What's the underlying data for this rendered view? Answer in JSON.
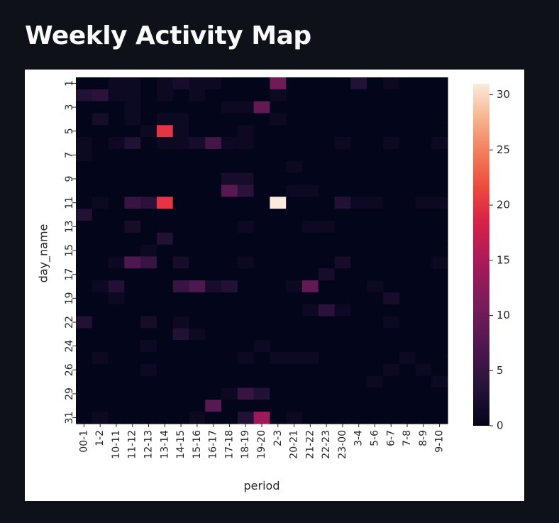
{
  "page": {
    "title": "Weekly Activity Map"
  },
  "chart_data": {
    "type": "heatmap",
    "title": "",
    "xlabel": "period",
    "ylabel": "day_name",
    "x_categories": [
      "00-1",
      "1-2",
      "10-11",
      "11-12",
      "12-13",
      "13-14",
      "14-15",
      "15-16",
      "16-17",
      "17-18",
      "18-19",
      "19-20",
      "2-3",
      "20-21",
      "21-22",
      "22-23",
      "23-00",
      "3-4",
      "5-6",
      "6-7",
      "7-8",
      "8-9",
      "9-10"
    ],
    "x_tick_labels": [
      "00-1",
      "1-2",
      "10-11",
      "11-12",
      "12-13",
      "13-14",
      "14-15",
      "15-16",
      "16-17",
      "17-18",
      "18-19",
      "19-20",
      "2-3",
      "20-21",
      "21-22",
      "22-23",
      "23-00",
      "3-4",
      "5-6",
      "6-7",
      "7-8",
      "8-9",
      "9-10"
    ],
    "y_categories": [
      "1",
      "2",
      "3",
      "4",
      "5",
      "6",
      "7",
      "8",
      "9",
      "10",
      "11",
      "12",
      "13",
      "14",
      "15",
      "16",
      "17",
      "18",
      "19",
      "20",
      "22",
      "23",
      "24",
      "25",
      "26",
      "27",
      "29",
      "30",
      "31"
    ],
    "y_tick_labels": [
      "1",
      "3",
      "5",
      "7",
      "9",
      "11",
      "13",
      "15",
      "17",
      "19",
      "22",
      "24",
      "26",
      "29",
      "31"
    ],
    "values": [
      [
        0,
        0,
        1,
        1,
        0,
        1,
        2,
        1,
        1,
        0,
        0,
        0,
        10,
        0,
        0,
        0,
        0,
        3,
        0,
        1,
        0,
        0,
        0
      ],
      [
        3,
        4,
        1,
        1,
        0,
        1,
        0,
        1,
        0,
        0,
        0,
        0,
        1,
        0,
        0,
        0,
        0,
        0,
        0,
        0,
        0,
        0,
        0
      ],
      [
        0,
        0,
        0,
        1,
        0,
        0,
        0,
        0,
        0,
        1,
        1,
        9,
        0,
        0,
        0,
        0,
        0,
        0,
        0,
        0,
        0,
        0,
        0
      ],
      [
        0,
        2,
        0,
        1,
        0,
        1,
        1,
        0,
        0,
        0,
        0,
        0,
        1,
        0,
        0,
        0,
        0,
        0,
        0,
        0,
        0,
        0,
        0
      ],
      [
        0,
        0,
        0,
        0,
        1,
        20,
        1,
        0,
        0,
        0,
        1,
        0,
        0,
        0,
        0,
        0,
        0,
        0,
        0,
        0,
        0,
        0,
        0
      ],
      [
        1,
        0,
        1,
        3,
        0,
        1,
        1,
        2,
        6,
        1,
        1,
        0,
        0,
        0,
        0,
        0,
        1,
        0,
        0,
        1,
        0,
        0,
        1
      ],
      [
        1,
        0,
        0,
        0,
        0,
        0,
        0,
        0,
        0,
        0,
        0,
        0,
        0,
        0,
        0,
        0,
        0,
        0,
        0,
        0,
        0,
        0,
        0
      ],
      [
        0,
        0,
        0,
        0,
        0,
        0,
        0,
        0,
        0,
        0,
        0,
        0,
        0,
        1,
        0,
        0,
        0,
        0,
        0,
        0,
        0,
        0,
        0
      ],
      [
        0,
        0,
        0,
        0,
        0,
        0,
        0,
        0,
        0,
        2,
        2,
        0,
        0,
        0,
        0,
        0,
        0,
        0,
        0,
        0,
        0,
        0,
        0
      ],
      [
        0,
        0,
        0,
        0,
        0,
        0,
        0,
        0,
        0,
        8,
        4,
        0,
        0,
        1,
        1,
        0,
        0,
        0,
        0,
        0,
        0,
        0,
        0
      ],
      [
        0,
        1,
        0,
        5,
        4,
        20,
        0,
        0,
        0,
        0,
        0,
        0,
        31,
        0,
        0,
        0,
        3,
        1,
        1,
        0,
        0,
        1,
        1
      ],
      [
        3,
        0,
        0,
        0,
        0,
        0,
        0,
        0,
        0,
        0,
        0,
        0,
        0,
        0,
        0,
        0,
        0,
        0,
        0,
        0,
        0,
        0,
        0
      ],
      [
        0,
        0,
        0,
        2,
        0,
        0,
        0,
        0,
        0,
        0,
        1,
        0,
        0,
        0,
        1,
        1,
        0,
        0,
        0,
        0,
        0,
        0,
        0
      ],
      [
        0,
        0,
        0,
        0,
        0,
        3,
        0,
        0,
        0,
        0,
        0,
        0,
        0,
        0,
        0,
        0,
        0,
        0,
        0,
        0,
        0,
        0,
        0
      ],
      [
        0,
        0,
        0,
        0,
        1,
        0,
        0,
        0,
        0,
        0,
        0,
        0,
        0,
        0,
        0,
        0,
        0,
        0,
        0,
        0,
        0,
        0,
        0
      ],
      [
        0,
        0,
        1,
        7,
        5,
        0,
        2,
        0,
        0,
        0,
        1,
        0,
        0,
        0,
        0,
        0,
        2,
        0,
        0,
        0,
        0,
        0,
        1
      ],
      [
        0,
        0,
        0,
        0,
        0,
        0,
        0,
        0,
        0,
        0,
        0,
        0,
        0,
        0,
        0,
        2,
        0,
        0,
        0,
        0,
        0,
        0,
        0
      ],
      [
        0,
        1,
        3,
        0,
        0,
        0,
        5,
        7,
        2,
        3,
        0,
        0,
        0,
        1,
        9,
        0,
        0,
        0,
        1,
        0,
        0,
        0,
        0
      ],
      [
        0,
        0,
        1,
        0,
        0,
        0,
        0,
        0,
        0,
        0,
        0,
        0,
        0,
        0,
        0,
        0,
        0,
        0,
        0,
        2,
        0,
        0,
        0
      ],
      [
        0,
        0,
        0,
        0,
        0,
        0,
        0,
        0,
        0,
        0,
        0,
        0,
        0,
        0,
        1,
        4,
        1,
        0,
        0,
        0,
        0,
        0,
        0
      ],
      [
        3,
        0,
        0,
        0,
        2,
        0,
        1,
        0,
        0,
        0,
        0,
        0,
        0,
        0,
        0,
        0,
        0,
        0,
        0,
        1,
        0,
        0,
        0
      ],
      [
        0,
        0,
        0,
        0,
        0,
        0,
        3,
        1,
        0,
        0,
        0,
        0,
        0,
        0,
        0,
        0,
        0,
        0,
        0,
        0,
        0,
        0,
        0
      ],
      [
        0,
        0,
        0,
        0,
        1,
        0,
        0,
        0,
        0,
        0,
        0,
        1,
        0,
        0,
        0,
        0,
        0,
        0,
        0,
        0,
        0,
        0,
        0
      ],
      [
        0,
        1,
        0,
        0,
        0,
        0,
        0,
        0,
        0,
        0,
        1,
        0,
        1,
        1,
        1,
        0,
        0,
        0,
        0,
        0,
        1,
        0,
        0
      ],
      [
        0,
        0,
        0,
        0,
        1,
        0,
        0,
        0,
        0,
        0,
        0,
        0,
        0,
        0,
        0,
        0,
        0,
        0,
        0,
        1,
        0,
        1,
        0
      ],
      [
        0,
        0,
        0,
        0,
        0,
        0,
        0,
        0,
        0,
        0,
        0,
        0,
        0,
        0,
        0,
        0,
        0,
        0,
        1,
        0,
        0,
        0,
        1
      ],
      [
        0,
        0,
        0,
        0,
        0,
        0,
        0,
        0,
        0,
        1,
        5,
        3,
        0,
        0,
        0,
        0,
        0,
        0,
        0,
        0,
        0,
        0,
        0
      ],
      [
        0,
        0,
        0,
        0,
        0,
        0,
        0,
        0,
        8,
        0,
        0,
        0,
        0,
        0,
        0,
        0,
        0,
        0,
        0,
        0,
        0,
        0,
        0
      ],
      [
        0,
        1,
        0,
        0,
        0,
        0,
        0,
        1,
        0,
        0,
        3,
        14,
        0,
        1,
        0,
        0,
        0,
        0,
        0,
        0,
        0,
        0,
        0
      ]
    ],
    "colorbar": {
      "min": 0,
      "max": 31,
      "ticks": [
        0,
        5,
        10,
        15,
        20,
        25,
        30
      ],
      "colormap": "rocket"
    }
  }
}
